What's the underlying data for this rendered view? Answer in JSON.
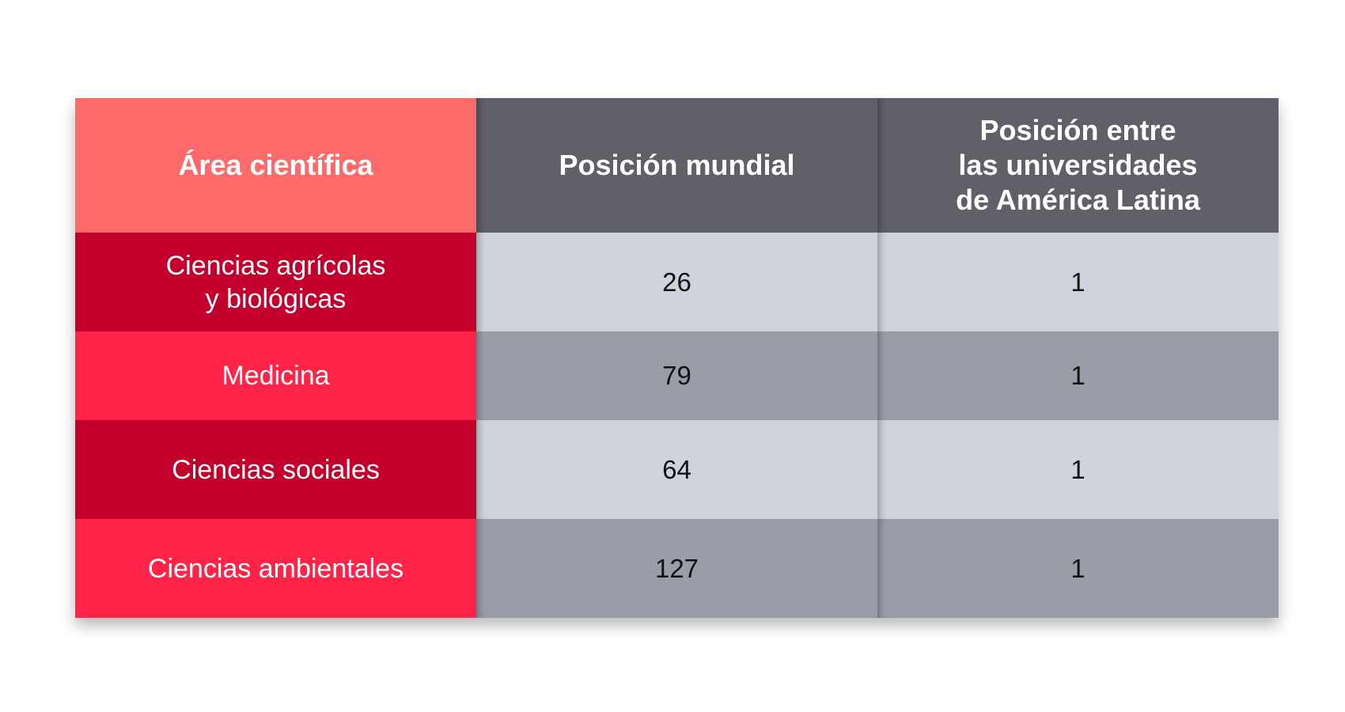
{
  "table": {
    "headers": [
      "Área científica",
      "Posición mundial",
      "Posición entre\nlas universidades\nde América Latina"
    ],
    "rows": [
      {
        "area": "Ciencias agrícolas\ny biológicas",
        "world": "26",
        "latam": "1"
      },
      {
        "area": "Medicina",
        "world": "79",
        "latam": "1"
      },
      {
        "area": "Ciencias sociales",
        "world": "64",
        "latam": "1"
      },
      {
        "area": "Ciencias ambientales",
        "world": "127",
        "latam": "1"
      }
    ]
  },
  "colors": {
    "header_area": "#fe6a6a",
    "header_dark": "#5f6068",
    "area_dark": "#c4002c",
    "area_bright": "#ff2447",
    "value_light": "#d0d3dc",
    "value_mid": "#9a9da8"
  }
}
